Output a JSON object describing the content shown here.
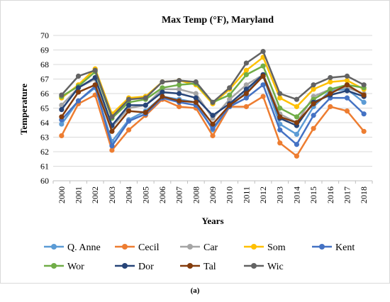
{
  "caption": "(a)",
  "chart_data": {
    "type": "line",
    "title": "Max Temp (°F), Maryland",
    "xlabel": "Years",
    "ylabel": "Temperature",
    "ylim": [
      60,
      70
    ],
    "yticks": [
      60,
      61,
      62,
      63,
      64,
      65,
      66,
      67,
      68,
      69,
      70
    ],
    "grid": true,
    "legend_position": "bottom",
    "categories": [
      "2000",
      "2001",
      "2002",
      "2003",
      "2004",
      "2005",
      "2006",
      "2007",
      "2008",
      "2009",
      "2010",
      "2011",
      "2012",
      "2013",
      "2014",
      "2015",
      "2016",
      "2017",
      "2018"
    ],
    "series": [
      {
        "name": "Q. Anne",
        "color": "#5b9bd5",
        "values": [
          63.9,
          65.5,
          66.4,
          62.7,
          64.2,
          64.8,
          65.8,
          65.6,
          65.4,
          63.5,
          65.1,
          66.1,
          67.2,
          63.9,
          63.2,
          65.1,
          66.2,
          66.3,
          65.4
        ]
      },
      {
        "name": "Cecil",
        "color": "#ed7d31",
        "values": [
          63.1,
          65.3,
          65.9,
          62.1,
          63.5,
          64.5,
          65.6,
          65.1,
          65.0,
          63.1,
          65.1,
          65.1,
          65.8,
          62.6,
          61.7,
          63.6,
          65.1,
          64.8,
          63.4
        ]
      },
      {
        "name": "Car",
        "color": "#a5a5a5",
        "values": [
          65.2,
          66.4,
          67.0,
          63.7,
          65.0,
          65.2,
          66.3,
          66.3,
          66.0,
          64.3,
          65.6,
          66.6,
          67.3,
          64.6,
          64.0,
          65.8,
          66.3,
          66.4,
          66.0
        ]
      },
      {
        "name": "Som",
        "color": "#ffc000",
        "values": [
          65.7,
          66.6,
          67.7,
          64.6,
          65.7,
          65.8,
          66.8,
          66.9,
          66.6,
          65.3,
          66.3,
          67.6,
          68.5,
          65.7,
          65.1,
          66.3,
          66.8,
          66.9,
          66.3
        ]
      },
      {
        "name": "Kent",
        "color": "#4472c4",
        "values": [
          64.2,
          65.5,
          66.5,
          62.4,
          64.1,
          64.6,
          65.7,
          65.4,
          65.2,
          63.6,
          65.1,
          65.7,
          66.6,
          63.5,
          62.5,
          64.5,
          65.7,
          65.7,
          64.6
        ]
      },
      {
        "name": "Wor",
        "color": "#70ad47",
        "values": [
          65.8,
          66.5,
          67.5,
          64.3,
          65.4,
          65.6,
          66.4,
          66.6,
          66.7,
          65.4,
          65.9,
          67.3,
          67.9,
          65.0,
          64.4,
          65.6,
          66.3,
          66.6,
          66.4
        ]
      },
      {
        "name": "Dor",
        "color": "#264478",
        "values": [
          64.9,
          66.4,
          67.1,
          63.8,
          65.2,
          65.2,
          66.1,
          66.0,
          65.7,
          64.5,
          65.3,
          66.3,
          67.3,
          64.3,
          63.8,
          65.4,
          65.9,
          66.2,
          65.8
        ]
      },
      {
        "name": "Tal",
        "color": "#843c0c",
        "values": [
          64.4,
          66.1,
          66.6,
          63.4,
          64.8,
          64.7,
          65.8,
          65.5,
          65.4,
          63.9,
          65.2,
          66.0,
          67.2,
          64.4,
          64.0,
          65.3,
          66.0,
          66.6,
          65.9
        ]
      },
      {
        "name": "Wic",
        "color": "#636363",
        "values": [
          65.9,
          67.2,
          67.6,
          64.4,
          65.6,
          65.7,
          66.8,
          66.9,
          66.8,
          65.4,
          66.4,
          68.1,
          68.9,
          66.0,
          65.6,
          66.6,
          67.1,
          67.2,
          66.6
        ]
      }
    ]
  }
}
